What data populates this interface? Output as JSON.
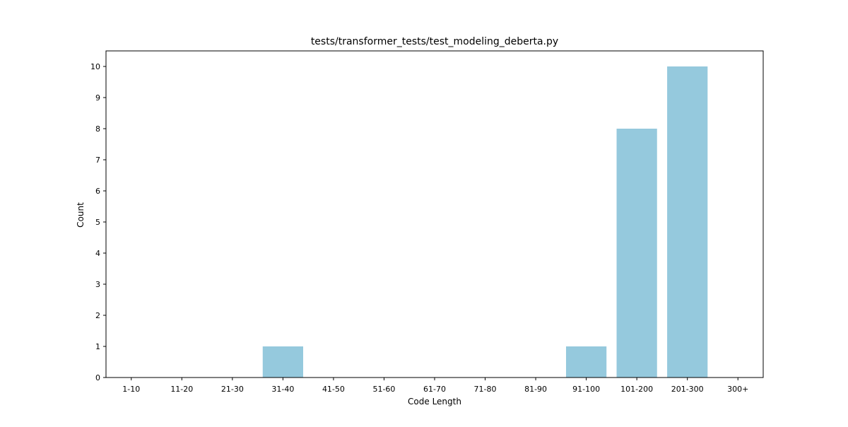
{
  "chart_data": {
    "type": "bar",
    "title": "tests/transformer_tests/test_modeling_deberta.py",
    "xlabel": "Code Length",
    "ylabel": "Count",
    "categories": [
      "1-10",
      "11-20",
      "21-30",
      "31-40",
      "41-50",
      "51-60",
      "61-70",
      "71-80",
      "81-90",
      "91-100",
      "101-200",
      "201-300",
      "300+"
    ],
    "values": [
      0,
      0,
      0,
      1,
      0,
      0,
      0,
      0,
      0,
      1,
      8,
      10,
      0
    ],
    "ylim": [
      0,
      10.5
    ],
    "yticks": [
      0,
      1,
      2,
      3,
      4,
      5,
      6,
      7,
      8,
      9,
      10
    ],
    "grid": false,
    "bar_color": "#95c9dd"
  }
}
